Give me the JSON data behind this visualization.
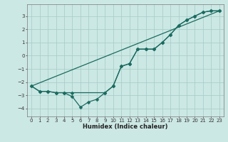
{
  "xlabel": "Humidex (Indice chaleur)",
  "ylabel": "",
  "background_color": "#cce8e4",
  "grid_color": "#aaceca",
  "line_color": "#1a6b60",
  "xlim": [
    -0.5,
    23.5
  ],
  "ylim": [
    -4.6,
    3.9
  ],
  "xticks": [
    0,
    1,
    2,
    3,
    4,
    5,
    6,
    7,
    8,
    9,
    10,
    11,
    12,
    13,
    14,
    15,
    16,
    17,
    18,
    19,
    20,
    21,
    22,
    23
  ],
  "yticks": [
    -4,
    -3,
    -2,
    -1,
    0,
    1,
    2,
    3
  ],
  "line1_x": [
    0,
    1,
    2,
    3,
    4,
    5,
    6,
    7,
    8,
    9,
    10,
    11,
    12,
    13,
    14,
    15,
    16,
    17,
    18,
    19,
    20,
    21,
    22,
    23
  ],
  "line1_y": [
    -2.3,
    -2.7,
    -2.7,
    -2.8,
    -2.8,
    -3.1,
    -3.9,
    -3.5,
    -3.3,
    -2.8,
    -2.3,
    -0.8,
    -0.6,
    0.5,
    0.5,
    0.5,
    1.0,
    1.6,
    2.3,
    2.7,
    3.0,
    3.3,
    3.4,
    3.4
  ],
  "line2_x": [
    0,
    1,
    2,
    3,
    4,
    5,
    9,
    10,
    11,
    12,
    13,
    14,
    15,
    16,
    17,
    18,
    19,
    20,
    21,
    22,
    23
  ],
  "line2_y": [
    -2.3,
    -2.7,
    -2.7,
    -2.8,
    -2.8,
    -2.8,
    -2.8,
    -2.3,
    -0.8,
    -0.6,
    0.5,
    0.5,
    0.5,
    1.0,
    1.6,
    2.3,
    2.7,
    3.0,
    3.3,
    3.4,
    3.4
  ],
  "line3_x": [
    0,
    23
  ],
  "line3_y": [
    -2.3,
    3.4
  ],
  "tick_fontsize": 5.0,
  "xlabel_fontsize": 6.0,
  "marker_size": 2.5,
  "linewidth": 0.9
}
